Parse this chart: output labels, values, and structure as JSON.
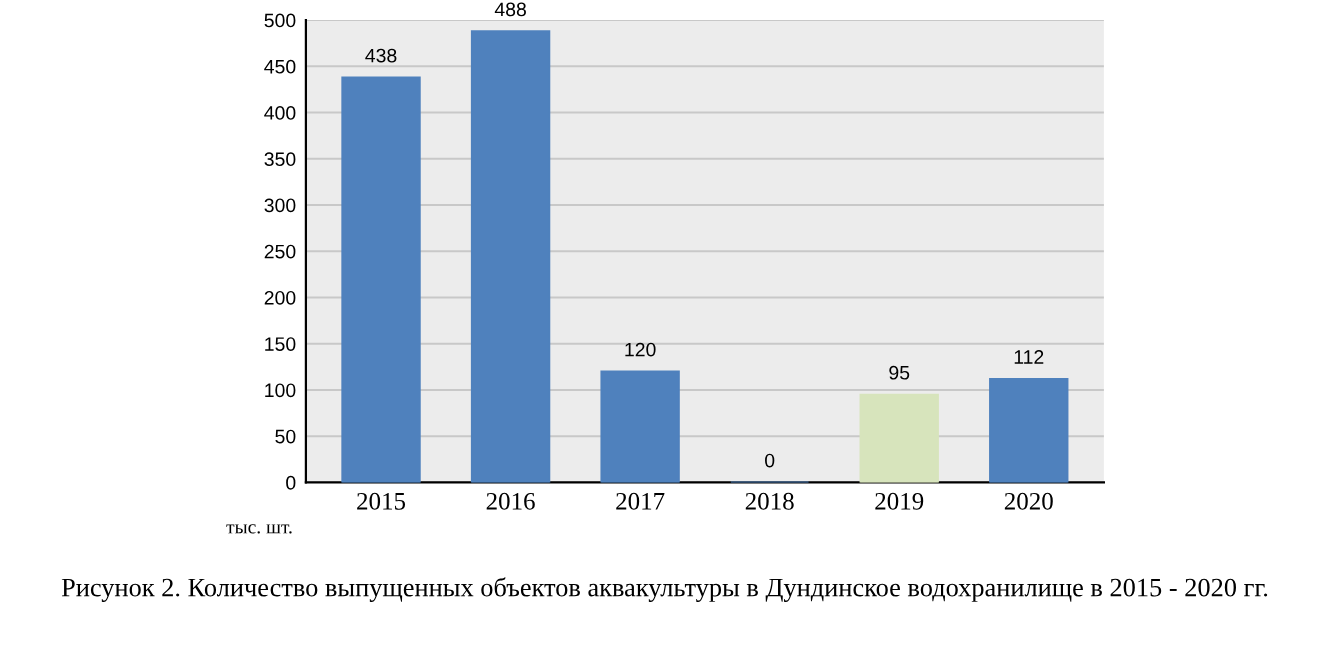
{
  "chart_data": {
    "type": "bar",
    "categories": [
      "2015",
      "2016",
      "2017",
      "2018",
      "2019",
      "2020"
    ],
    "values": [
      438,
      488,
      120,
      0,
      95,
      112
    ],
    "colors": [
      "#4f81bd",
      "#4f81bd",
      "#4f81bd",
      "#4f81bd",
      "#d7e4bc",
      "#4f81bd"
    ],
    "ylim": [
      0,
      500
    ],
    "yticks": [
      0,
      50,
      100,
      150,
      200,
      250,
      300,
      350,
      400,
      450,
      500
    ],
    "grid": "y",
    "data_labels": true,
    "ylabel": "тыс. шт.",
    "annotations": [
      "Рисунок 2. Количество выпущенных объектов аквакультуры в Дундинское водохранилище в 2015 - 2020 гг."
    ]
  }
}
